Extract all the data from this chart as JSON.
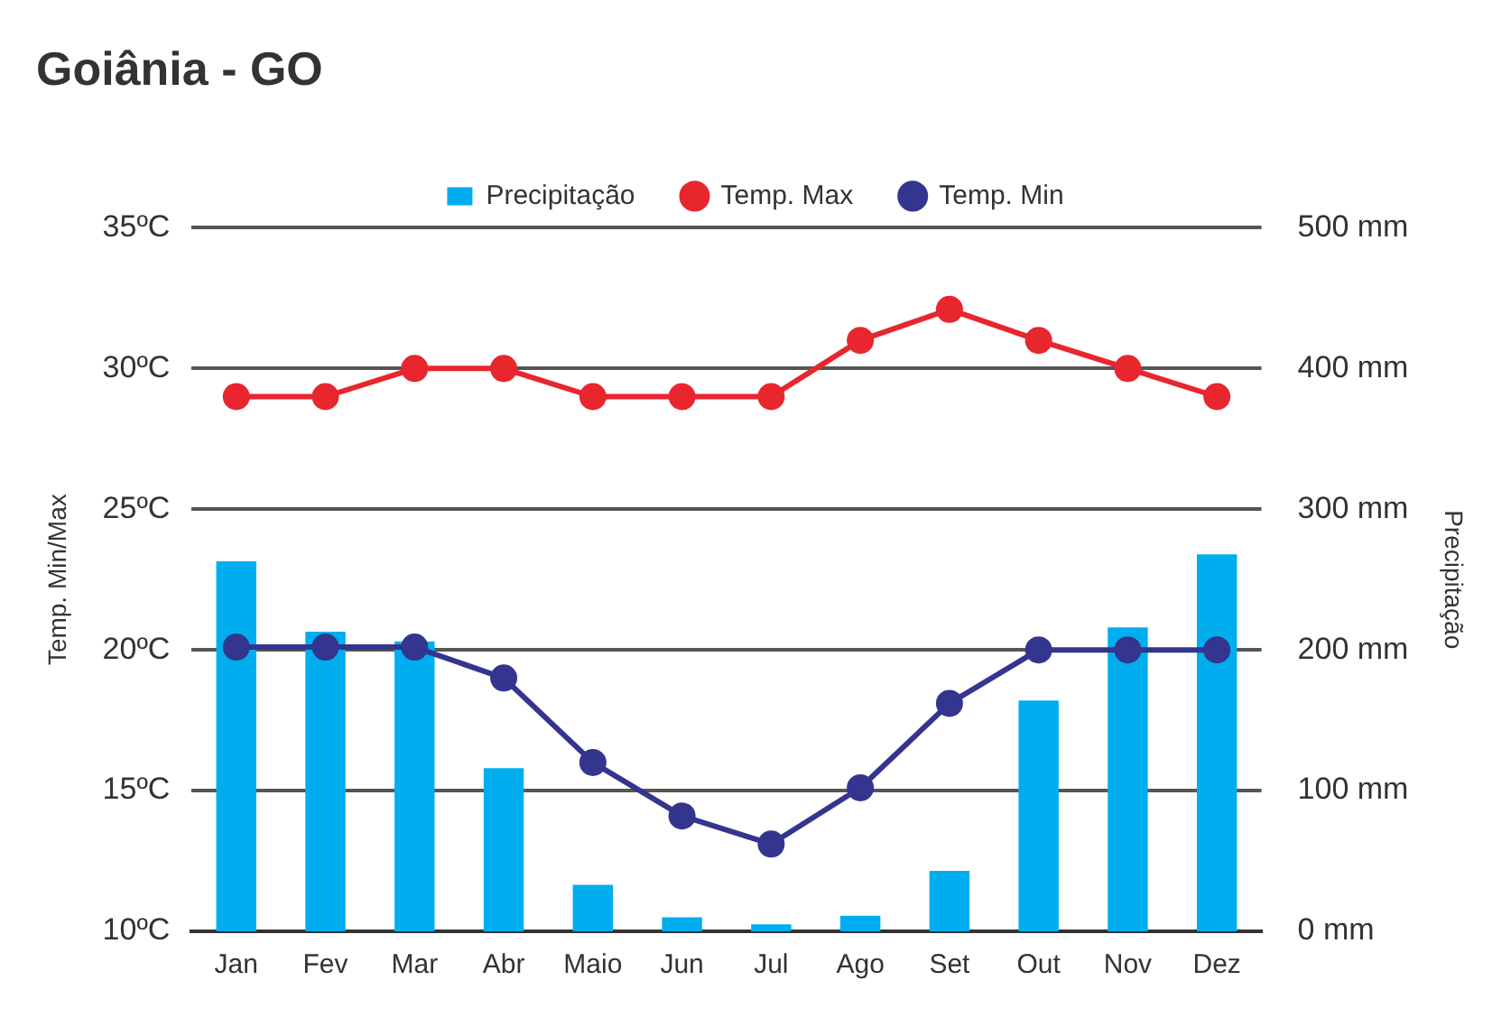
{
  "chart_data": {
    "type": "bar",
    "title": "Goiânia - GO",
    "ylabel": "Temp. Min/Max",
    "y2label": "Precipitação",
    "categories": [
      "Jan",
      "Fev",
      "Mar",
      "Abr",
      "Maio",
      "Jun",
      "Jul",
      "Ago",
      "Set",
      "Out",
      "Nov",
      "Dez"
    ],
    "series": [
      {
        "name": "Precipitação",
        "axis": "y2",
        "color": "#00aeef",
        "values": [
          263,
          213,
          206,
          116,
          33,
          10,
          5,
          11,
          43,
          164,
          216,
          268
        ]
      },
      {
        "name": "Temp. Max",
        "type": "line",
        "axis": "y",
        "color": "#e8262e",
        "values": [
          29,
          29,
          30,
          30,
          29,
          29,
          29,
          31,
          32.1,
          31,
          30,
          29
        ]
      },
      {
        "name": "Temp. Min",
        "type": "line",
        "axis": "y",
        "color": "#33358f",
        "values": [
          20.1,
          20.1,
          20.1,
          19,
          16,
          14.1,
          13.1,
          15.1,
          18.1,
          20,
          20,
          20
        ]
      }
    ],
    "ylim": [
      10,
      35
    ],
    "yticks": [
      {
        "value": 10,
        "label": "10ºC"
      },
      {
        "value": 15,
        "label": "15ºC"
      },
      {
        "value": 20,
        "label": "20ºC"
      },
      {
        "value": 25,
        "label": "25ºC"
      },
      {
        "value": 30,
        "label": "30ºC"
      },
      {
        "value": 35,
        "label": "35ºC"
      }
    ],
    "y2lim": [
      0,
      500
    ],
    "y2ticks": [
      {
        "value": 0,
        "label": "0 mm"
      },
      {
        "value": 100,
        "label": "100 mm"
      },
      {
        "value": 200,
        "label": "200 mm"
      },
      {
        "value": 300,
        "label": "300 mm"
      },
      {
        "value": 400,
        "label": "400 mm"
      },
      {
        "value": 500,
        "label": "500 mm"
      }
    ],
    "grid": "y",
    "legend": "top",
    "marker": "circle"
  }
}
